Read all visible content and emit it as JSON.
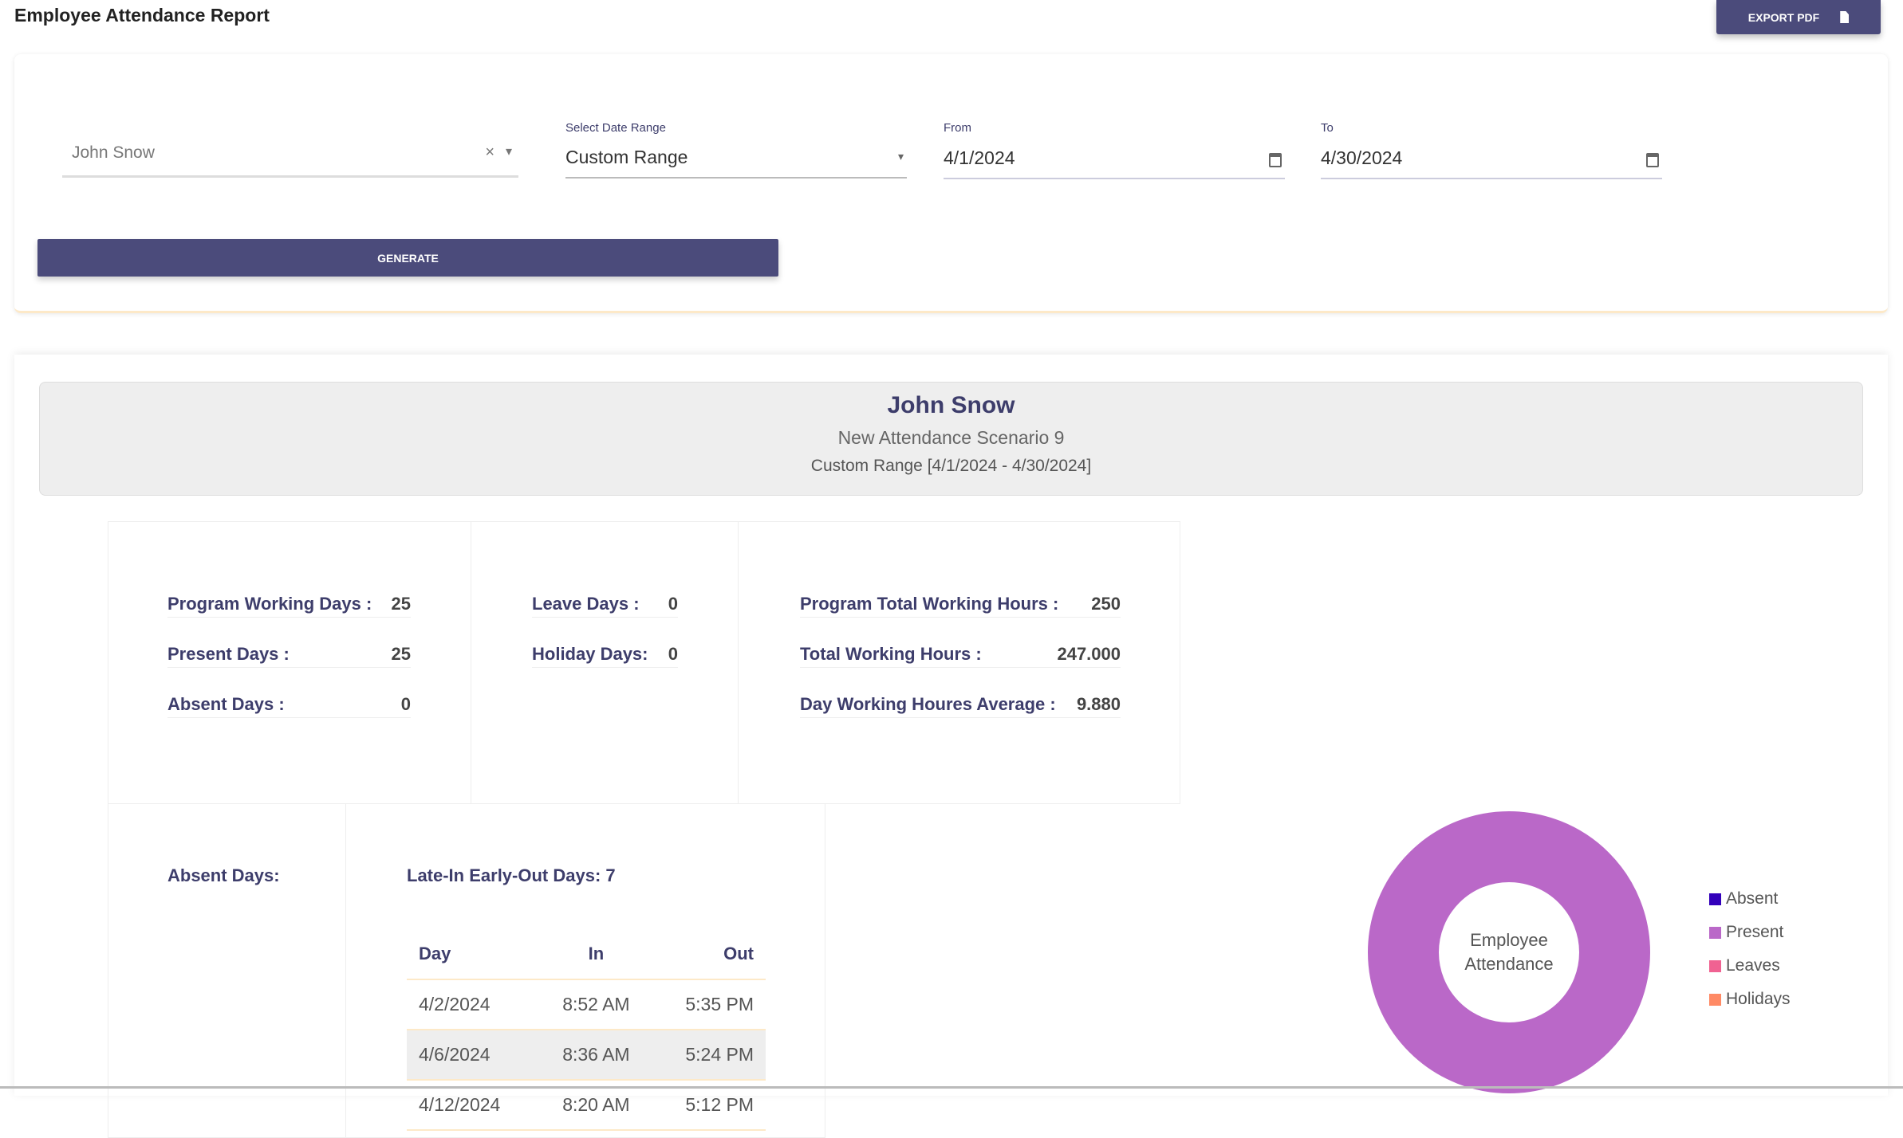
{
  "header": {
    "title": "Employee Attendance Report",
    "export_label": "EXPORT PDF"
  },
  "filters": {
    "employee": {
      "value": "John Snow",
      "clear": "×",
      "caret": "▾"
    },
    "date_range": {
      "label": "Select Date Range",
      "value": "Custom Range",
      "caret": "▾"
    },
    "from": {
      "label": "From",
      "value": "4/1/2024"
    },
    "to": {
      "label": "To",
      "value": "4/30/2024"
    },
    "generate_label": "GENERATE"
  },
  "report": {
    "name": "John Snow",
    "scenario": "New Attendance Scenario 9",
    "range": "Custom Range [4/1/2024 - 4/30/2024]",
    "stats_col1": [
      {
        "label": "Program Working Days :",
        "value": "25"
      },
      {
        "label": "Present Days :",
        "value": "25"
      },
      {
        "label": "Absent Days :",
        "value": "0"
      }
    ],
    "stats_col2": [
      {
        "label": "Leave Days :",
        "value": "0"
      },
      {
        "label": "Holiday Days:",
        "value": "0"
      }
    ],
    "stats_col3": [
      {
        "label": "Program Total Working Hours :",
        "value": "250"
      },
      {
        "label": "Total Working Hours :",
        "value": "247.000"
      },
      {
        "label": "Day Working Houres Average :",
        "value": "9.880"
      }
    ],
    "absent_heading": "Absent Days:",
    "late_heading": "Late-In Early-Out Days: 7",
    "late_table": {
      "columns": [
        "Day",
        "In",
        "Out"
      ],
      "rows": [
        [
          "4/2/2024",
          "8:52 AM",
          "5:35 PM"
        ],
        [
          "4/6/2024",
          "8:36 AM",
          "5:24 PM"
        ],
        [
          "4/12/2024",
          "8:20 AM",
          "5:12 PM"
        ]
      ]
    }
  },
  "chart_data": {
    "type": "pie",
    "variant": "donut",
    "center_label": "Employee Attendance",
    "categories": [
      "Absent",
      "Present",
      "Leaves",
      "Holidays"
    ],
    "values": [
      0,
      25,
      0,
      0
    ],
    "colors": [
      "#3300bb",
      "#ba68c8",
      "#f06292",
      "#ff8a65"
    ],
    "legend": "right"
  }
}
